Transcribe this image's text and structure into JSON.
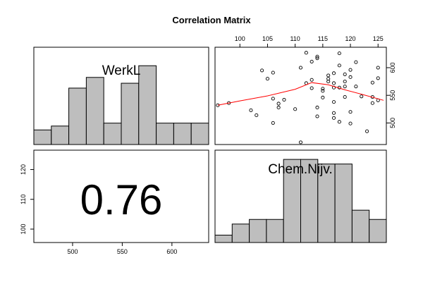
{
  "chart_data": {
    "type": "pairs",
    "title": "Correlation Matrix",
    "variables": [
      "WerkL",
      "Chem.Nijv."
    ],
    "correlation_label": "0.76",
    "x_ticks_werkl": [
      "500",
      "550",
      "600"
    ],
    "y_ticks_chem": [
      "100",
      "110",
      "120"
    ],
    "x_ticks_chem": [
      "100",
      "105",
      "110",
      "115",
      "120",
      "125"
    ],
    "y_ticks_werkl": [
      "500",
      "550",
      "600"
    ],
    "werkl_range": [
      461,
      637
    ],
    "chem_range": [
      95.5,
      126.5
    ],
    "hist_werkl": {
      "breaks": [
        461,
        478.6,
        496.2,
        513.8,
        531.4,
        549,
        566.6,
        584.2,
        601.8,
        619.4,
        637
      ],
      "density": [
        0.15,
        0.19,
        0.58,
        0.69,
        0.22,
        0.63,
        0.81,
        0.22,
        0.22,
        0.22
      ]
    },
    "hist_chem": {
      "breaks": [
        95.5,
        98.6,
        101.7,
        104.8,
        107.9,
        111,
        114.1,
        117.2,
        120.3,
        123.4,
        126.5
      ],
      "density": [
        0.08,
        0.2,
        0.25,
        0.25,
        0.9,
        0.9,
        0.85,
        0.85,
        0.35,
        0.25
      ]
    },
    "scatter": {
      "x_variable": "Chem.Nijv.",
      "y_variable": "WerkL",
      "points": [
        [
          96,
          532
        ],
        [
          98,
          536
        ],
        [
          102,
          523
        ],
        [
          103,
          514
        ],
        [
          104,
          595
        ],
        [
          105,
          580
        ],
        [
          106,
          591
        ],
        [
          106,
          544
        ],
        [
          106,
          500
        ],
        [
          107,
          535
        ],
        [
          107,
          528
        ],
        [
          108,
          542
        ],
        [
          110,
          525
        ],
        [
          111,
          600
        ],
        [
          111,
          465
        ],
        [
          112,
          572
        ],
        [
          112,
          627
        ],
        [
          113,
          578
        ],
        [
          113,
          563
        ],
        [
          113,
          611
        ],
        [
          114,
          617
        ],
        [
          114,
          620
        ],
        [
          114,
          528
        ],
        [
          114,
          512
        ],
        [
          115,
          558
        ],
        [
          115,
          562
        ],
        [
          115,
          546
        ],
        [
          116,
          586
        ],
        [
          116,
          580
        ],
        [
          116,
          575
        ],
        [
          117,
          590
        ],
        [
          117,
          572
        ],
        [
          117,
          564
        ],
        [
          117,
          538
        ],
        [
          117,
          518
        ],
        [
          117,
          509
        ],
        [
          118,
          626
        ],
        [
          118,
          604
        ],
        [
          118,
          564
        ],
        [
          118,
          502
        ],
        [
          119,
          588
        ],
        [
          119,
          575
        ],
        [
          119,
          566
        ],
        [
          119,
          547
        ],
        [
          120,
          596
        ],
        [
          120,
          583
        ],
        [
          120,
          520
        ],
        [
          120,
          499
        ],
        [
          121,
          610
        ],
        [
          121,
          566
        ],
        [
          122,
          548
        ],
        [
          123,
          485
        ],
        [
          124,
          573
        ],
        [
          124,
          547
        ],
        [
          124,
          536
        ],
        [
          125,
          600
        ],
        [
          125,
          581
        ],
        [
          125,
          541
        ]
      ]
    },
    "smooth_line": {
      "color": "#ff0000",
      "points": [
        [
          96,
          532
        ],
        [
          100,
          540
        ],
        [
          105,
          549
        ],
        [
          110,
          561
        ],
        [
          113,
          573
        ],
        [
          116,
          569
        ],
        [
          119,
          560
        ],
        [
          122,
          552
        ],
        [
          126,
          541
        ]
      ]
    },
    "bar_fill": "#bebebe"
  }
}
